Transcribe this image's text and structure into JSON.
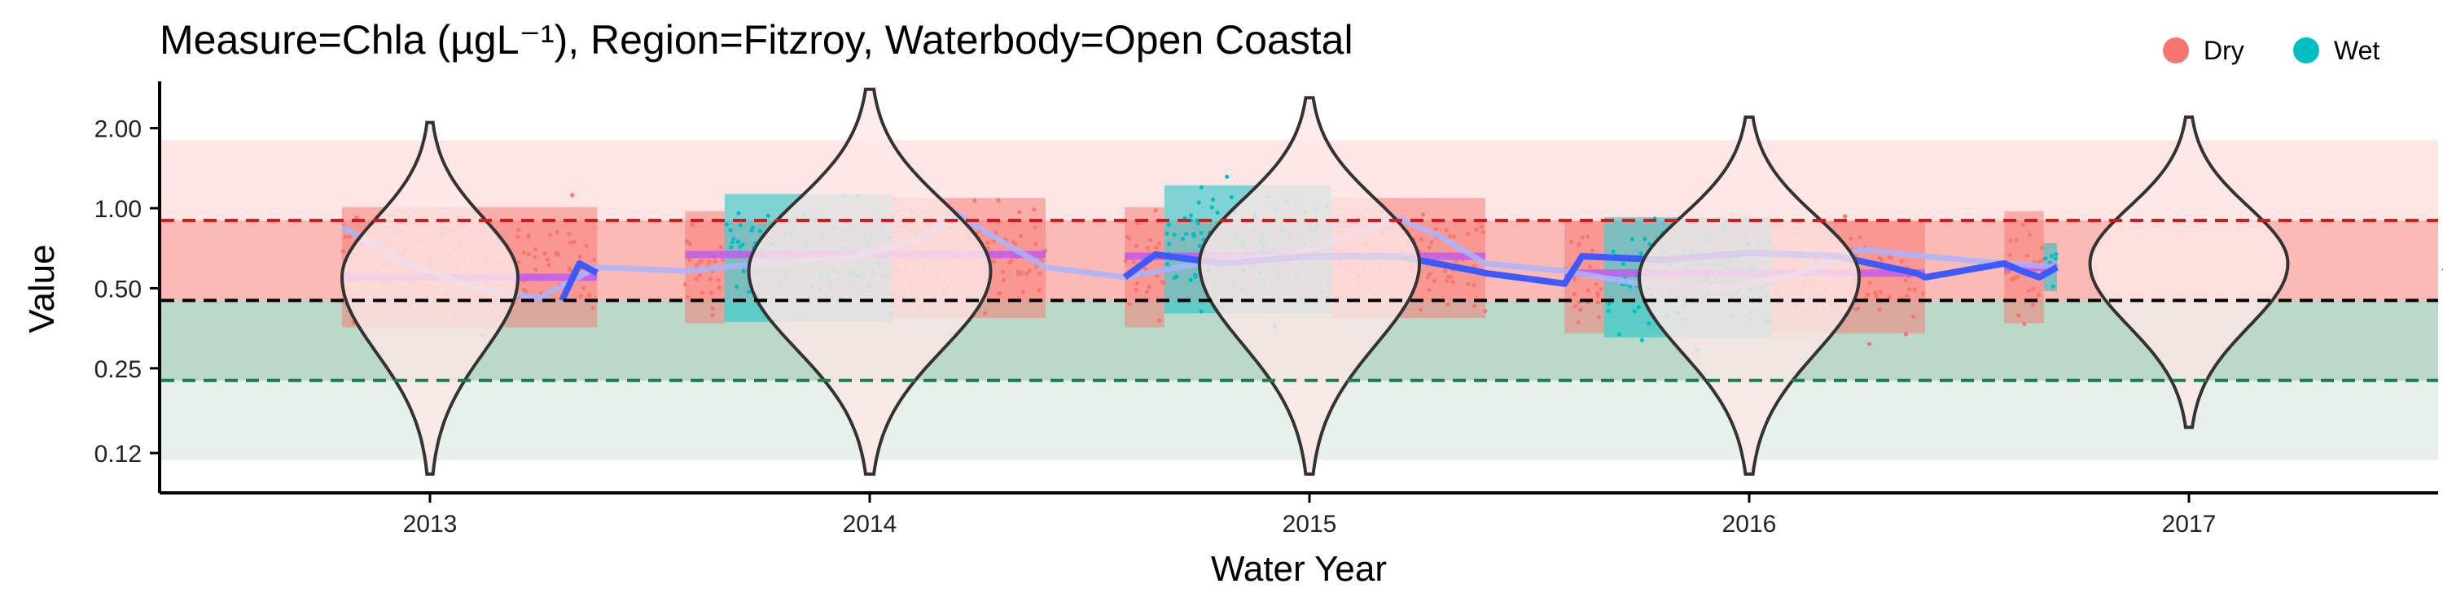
{
  "chart_data": {
    "type": "violin-scatter",
    "title": "Measure=Chla (µgL⁻¹), Region=Fitzroy, Waterbody=Open Coastal",
    "xlabel": "Water Year",
    "ylabel": "Value",
    "y_scale": "log2",
    "ylim": [
      0.085,
      3.0
    ],
    "y_ticks": [
      0.12,
      0.25,
      0.5,
      1.0,
      2.0
    ],
    "y_tick_labels": [
      "0.12",
      "0.25",
      "0.50",
      "1.00",
      "2.00"
    ],
    "categories": [
      "2013",
      "2014",
      "2015",
      "2016",
      "2017"
    ],
    "legend": {
      "position": "top-right",
      "entries": [
        {
          "name": "Dry",
          "color": "#F8766D"
        },
        {
          "name": "Wet",
          "color": "#00BFC4"
        }
      ]
    },
    "guideline_bands": [
      {
        "name": "above-upper",
        "from": 0.9,
        "to": 1.8,
        "color": "#F8766D",
        "opacity": 0.18
      },
      {
        "name": "upper",
        "from": 0.45,
        "to": 0.9,
        "color": "#F8766D",
        "opacity": 0.5
      },
      {
        "name": "lower",
        "from": 0.225,
        "to": 0.45,
        "color": "#2E8B57",
        "opacity": 0.33
      },
      {
        "name": "below-lower",
        "from": 0.113,
        "to": 0.225,
        "color": "#2E8B57",
        "opacity": 0.12
      }
    ],
    "reference_lines": [
      {
        "name": "upper-threshold",
        "value": 0.9,
        "color": "#D7191C"
      },
      {
        "name": "guideline",
        "value": 0.45,
        "color": "#000000"
      },
      {
        "name": "lower-threshold",
        "value": 0.225,
        "color": "#1A7F4B"
      }
    ],
    "violins": [
      {
        "year": "2013",
        "min": 0.1,
        "max": 2.1,
        "median": 0.55,
        "width": 0.4
      },
      {
        "year": "2014",
        "min": 0.1,
        "max": 2.8,
        "median": 0.58,
        "width": 0.55
      },
      {
        "year": "2015",
        "min": 0.1,
        "max": 2.6,
        "median": 0.62,
        "width": 0.5
      },
      {
        "year": "2016",
        "min": 0.1,
        "max": 2.2,
        "median": 0.55,
        "width": 0.5
      },
      {
        "year": "2017",
        "min": 0.15,
        "max": 2.2,
        "median": 0.62,
        "width": 0.45
      }
    ],
    "observation_segments": [
      {
        "year": "2013",
        "season": "Dry",
        "start": -0.2,
        "end": 0.38,
        "median": 0.6,
        "spread": 0.75
      },
      {
        "year": "2014",
        "season": "Dry",
        "start": -0.42,
        "end": -0.33,
        "median": 0.6,
        "spread": 0.7
      },
      {
        "year": "2014",
        "season": "Wet",
        "start": -0.33,
        "end": 0.05,
        "median": 0.65,
        "spread": 0.8
      },
      {
        "year": "2014",
        "season": "Dry",
        "start": 0.05,
        "end": 0.4,
        "median": 0.65,
        "spread": 0.75
      },
      {
        "year": "2015",
        "season": "Dry",
        "start": -0.42,
        "end": -0.33,
        "median": 0.6,
        "spread": 0.75
      },
      {
        "year": "2015",
        "season": "Wet",
        "start": -0.33,
        "end": 0.05,
        "median": 0.7,
        "spread": 0.8
      },
      {
        "year": "2015",
        "season": "Dry",
        "start": 0.05,
        "end": 0.4,
        "median": 0.65,
        "spread": 0.75
      },
      {
        "year": "2016",
        "season": "Dry",
        "start": -0.42,
        "end": -0.33,
        "median": 0.55,
        "spread": 0.7
      },
      {
        "year": "2016",
        "season": "Wet",
        "start": -0.33,
        "end": 0.05,
        "median": 0.55,
        "spread": 0.75
      },
      {
        "year": "2016",
        "season": "Dry",
        "start": 0.05,
        "end": 0.4,
        "median": 0.55,
        "spread": 0.7
      },
      {
        "year": "2017",
        "season": "Dry",
        "start": -0.42,
        "end": -0.33,
        "median": 0.6,
        "spread": 0.7
      },
      {
        "year": "2017",
        "season": "Wet",
        "start": -0.33,
        "end": -0.3,
        "median": 0.6,
        "spread": 0.3
      }
    ],
    "year_means": [
      {
        "year": "2013",
        "start": -0.2,
        "end": 0.38,
        "value": 0.55
      },
      {
        "year": "2014",
        "start": -0.42,
        "end": 0.4,
        "value": 0.67
      },
      {
        "year": "2015",
        "start": -0.42,
        "end": 0.4,
        "value": 0.66
      },
      {
        "year": "2016",
        "start": -0.42,
        "end": 0.4,
        "value": 0.57
      },
      {
        "year": "2017",
        "start": -0.42,
        "end": -0.3,
        "value": 0.6
      }
    ],
    "trend_line": [
      [
        -0.2,
        0.85
      ],
      [
        -0.05,
        0.62
      ],
      [
        0.1,
        0.5
      ],
      [
        0.25,
        0.46
      ],
      [
        0.38,
        0.6
      ],
      [
        0.58,
        0.58
      ],
      [
        0.75,
        0.62
      ],
      [
        0.95,
        0.65
      ],
      [
        1.1,
        0.75
      ],
      [
        1.2,
        0.95
      ],
      [
        1.3,
        0.75
      ],
      [
        1.4,
        0.6
      ],
      [
        1.58,
        0.55
      ],
      [
        1.75,
        0.62
      ],
      [
        1.95,
        0.66
      ],
      [
        2.1,
        0.8
      ],
      [
        2.2,
        0.92
      ],
      [
        2.3,
        0.78
      ],
      [
        2.4,
        0.62
      ],
      [
        2.58,
        0.58
      ],
      [
        2.75,
        0.52
      ],
      [
        2.95,
        0.5
      ],
      [
        3.1,
        0.56
      ],
      [
        3.25,
        0.7
      ],
      [
        3.4,
        0.66
      ],
      [
        3.58,
        0.62
      ],
      [
        3.7,
        0.6
      ]
    ],
    "smooth_line": [
      [
        0.3,
        0.45
      ],
      [
        0.34,
        0.62
      ],
      [
        0.38,
        0.57
      ],
      [
        1.58,
        0.55
      ],
      [
        1.65,
        0.67
      ],
      [
        1.8,
        0.62
      ],
      [
        2.0,
        0.66
      ],
      [
        2.2,
        0.66
      ],
      [
        2.38,
        0.58
      ],
      [
        2.4,
        0.57
      ],
      [
        2.58,
        0.52
      ],
      [
        2.62,
        0.66
      ],
      [
        2.8,
        0.64
      ],
      [
        3.0,
        0.68
      ],
      [
        3.2,
        0.66
      ],
      [
        3.38,
        0.57
      ],
      [
        3.4,
        0.55
      ],
      [
        3.58,
        0.62
      ],
      [
        3.62,
        0.58
      ],
      [
        3.66,
        0.55
      ],
      [
        3.7,
        0.6
      ],
      [
        4.58,
        0.6
      ],
      [
        4.62,
        0.52
      ],
      [
        4.66,
        0.56
      ]
    ]
  }
}
